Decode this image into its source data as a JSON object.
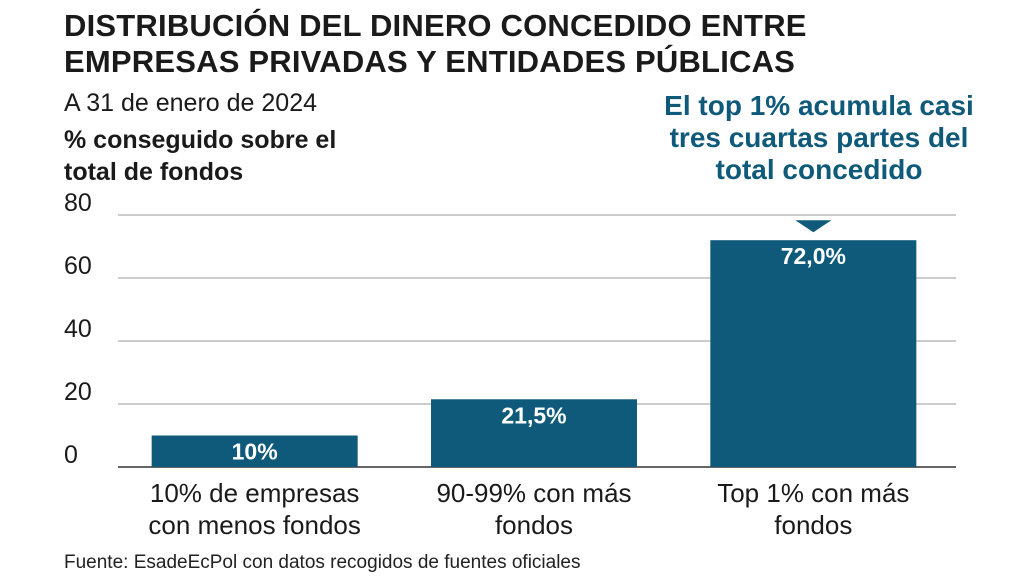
{
  "title": "DISTRIBUCIÓN DEL DINERO CONCEDIDO ENTRE EMPRESAS PRIVADAS Y ENTIDADES PÚBLICAS",
  "subtitle": "A 31 de enero de 2024",
  "annotation": "El top 1% acumula casi tres cuartas partes del total concedido",
  "source": "Fuente: EsadeEcPol con datos recogidos de fuentes oficiales",
  "colors": {
    "bar": "#0f5a7a",
    "annotation": "#0f5a7a",
    "grid": "#9a9a9a",
    "text": "#1a1a1a",
    "bar_label": "#ffffff"
  },
  "chart_data": {
    "type": "bar",
    "title": "DISTRIBUCIÓN DEL DINERO CONCEDIDO ENTRE EMPRESAS PRIVADAS Y ENTIDADES PÚBLICAS",
    "ylabel": "% conseguido sobre el total de fondos",
    "xlabel": "",
    "ylim": [
      0,
      80
    ],
    "yticks": [
      0,
      20,
      40,
      60,
      80
    ],
    "grid": true,
    "categories": [
      [
        "10% de empresas",
        "con menos fondos"
      ],
      [
        "90-99% con más",
        "fondos"
      ],
      [
        "Top 1% con más",
        "fondos"
      ]
    ],
    "values": [
      10,
      21.5,
      72
    ],
    "value_labels": [
      "10%",
      "21,5%",
      "72,0%"
    ]
  }
}
